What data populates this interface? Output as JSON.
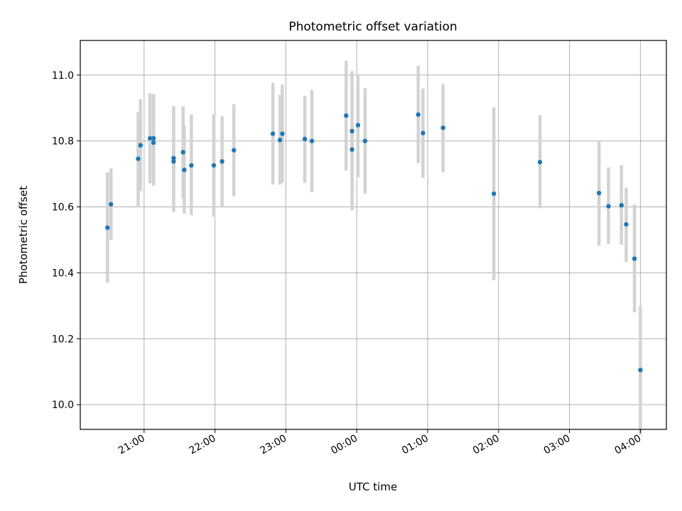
{
  "colors": {
    "marker": "#1f77b4",
    "errorbar": "#d3d3d3",
    "grid": "#b0b0b0",
    "axes": "#000000"
  },
  "chart_data": {
    "type": "scatter",
    "title": "Photometric offset variation",
    "xlabel": "UTC time",
    "ylabel": "Photometric offset",
    "x_axis": "time",
    "grid": true,
    "legend": "none",
    "xlim": [
      "20:06",
      "04:22"
    ],
    "ylim": [
      9.925,
      11.105
    ],
    "xticks": [
      "21:00",
      "22:00",
      "23:00",
      "00:00",
      "01:00",
      "02:00",
      "03:00",
      "04:00"
    ],
    "yticks": [
      10.0,
      10.2,
      10.4,
      10.6,
      10.8,
      11.0
    ],
    "ytick_labels": [
      "10.0",
      "10.2",
      "10.4",
      "10.6",
      "10.8",
      "11.0"
    ],
    "points": [
      {
        "x": "20:29",
        "y": 10.537,
        "low": 10.37,
        "high": 10.705
      },
      {
        "x": "20:32",
        "y": 10.608,
        "low": 10.5,
        "high": 10.717
      },
      {
        "x": "20:55",
        "y": 10.746,
        "low": 10.6,
        "high": 10.888
      },
      {
        "x": "20:57",
        "y": 10.787,
        "low": 10.648,
        "high": 10.927
      },
      {
        "x": "21:05",
        "y": 10.808,
        "low": 10.672,
        "high": 10.945
      },
      {
        "x": "21:08",
        "y": 10.795,
        "low": 10.664,
        "high": 10.943
      },
      {
        "x": "21:08",
        "y": 10.808,
        "low": 10.675,
        "high": 10.942
      },
      {
        "x": "21:25",
        "y": 10.738,
        "low": 10.585,
        "high": 10.9
      },
      {
        "x": "21:25",
        "y": 10.748,
        "low": 10.59,
        "high": 10.906
      },
      {
        "x": "21:33",
        "y": 10.766,
        "low": 10.627,
        "high": 10.905
      },
      {
        "x": "21:34",
        "y": 10.712,
        "low": 10.58,
        "high": 10.847
      },
      {
        "x": "21:40",
        "y": 10.726,
        "low": 10.575,
        "high": 10.88
      },
      {
        "x": "21:59",
        "y": 10.726,
        "low": 10.57,
        "high": 10.882
      },
      {
        "x": "22:06",
        "y": 10.738,
        "low": 10.6,
        "high": 10.875
      },
      {
        "x": "22:16",
        "y": 10.772,
        "low": 10.632,
        "high": 10.912
      },
      {
        "x": "22:49",
        "y": 10.822,
        "low": 10.668,
        "high": 10.976
      },
      {
        "x": "22:55",
        "y": 10.803,
        "low": 10.668,
        "high": 10.94
      },
      {
        "x": "22:57",
        "y": 10.822,
        "low": 10.673,
        "high": 10.971
      },
      {
        "x": "23:16",
        "y": 10.806,
        "low": 10.673,
        "high": 10.937
      },
      {
        "x": "23:22",
        "y": 10.8,
        "low": 10.645,
        "high": 10.955
      },
      {
        "x": "23:51",
        "y": 10.877,
        "low": 10.71,
        "high": 11.043
      },
      {
        "x": "23:56",
        "y": 10.83,
        "low": 10.648,
        "high": 11.012
      },
      {
        "x": "23:56",
        "y": 10.774,
        "low": 10.59,
        "high": 10.957
      },
      {
        "x": "00:01",
        "y": 10.848,
        "low": 10.69,
        "high": 11.003
      },
      {
        "x": "00:07",
        "y": 10.8,
        "low": 10.64,
        "high": 10.96
      },
      {
        "x": "00:52",
        "y": 10.88,
        "low": 10.733,
        "high": 11.028
      },
      {
        "x": "00:56",
        "y": 10.824,
        "low": 10.688,
        "high": 10.959
      },
      {
        "x": "01:13",
        "y": 10.84,
        "low": 10.705,
        "high": 10.973
      },
      {
        "x": "01:56",
        "y": 10.64,
        "low": 10.378,
        "high": 10.902
      },
      {
        "x": "02:35",
        "y": 10.736,
        "low": 10.596,
        "high": 10.878
      },
      {
        "x": "03:25",
        "y": 10.642,
        "low": 10.482,
        "high": 10.8
      },
      {
        "x": "03:33",
        "y": 10.602,
        "low": 10.487,
        "high": 10.72
      },
      {
        "x": "03:44",
        "y": 10.605,
        "low": 10.485,
        "high": 10.727
      },
      {
        "x": "03:48",
        "y": 10.547,
        "low": 10.433,
        "high": 10.658
      },
      {
        "x": "03:55",
        "y": 10.443,
        "low": 10.28,
        "high": 10.607
      },
      {
        "x": "04:00",
        "y": 10.105,
        "low": 9.908,
        "high": 10.3
      }
    ]
  }
}
